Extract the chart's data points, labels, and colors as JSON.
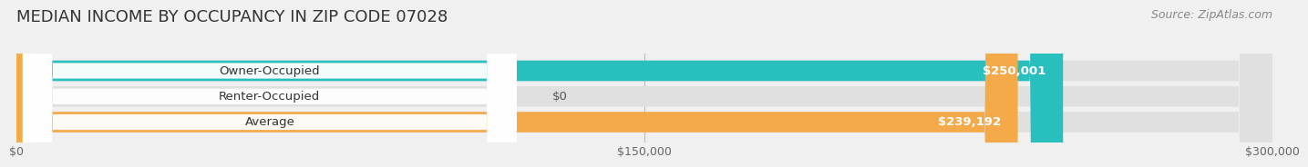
{
  "title": "MEDIAN INCOME BY OCCUPANCY IN ZIP CODE 07028",
  "source": "Source: ZipAtlas.com",
  "categories": [
    "Owner-Occupied",
    "Renter-Occupied",
    "Average"
  ],
  "values": [
    250001,
    0,
    239192
  ],
  "bar_colors": [
    "#29bfbf",
    "#c4a5d0",
    "#f5aa4a"
  ],
  "bar_labels": [
    "$250,001",
    "$0",
    "$239,192"
  ],
  "xlim": [
    0,
    300000
  ],
  "xticks": [
    0,
    150000,
    300000
  ],
  "xtick_labels": [
    "$0",
    "$150,000",
    "$300,000"
  ],
  "background_color": "#f0f0f0",
  "bar_bg_color": "#e0e0e0",
  "title_fontsize": 13,
  "source_fontsize": 9,
  "label_fontsize": 9.5,
  "value_fontsize": 9.5,
  "tick_fontsize": 9
}
